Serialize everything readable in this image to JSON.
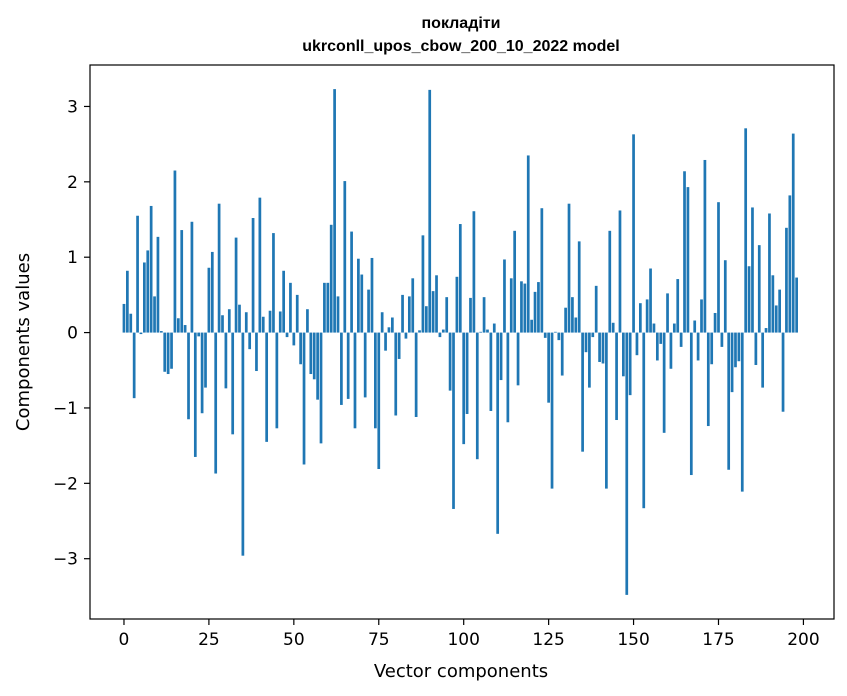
{
  "chart_data": {
    "type": "bar",
    "title_line1": "покладіти",
    "title_line2": "ukrconll_upos_cbow_200_10_2022 model",
    "xlabel": "Vector components",
    "ylabel": "Components values",
    "xlim": [
      -10,
      209
    ],
    "ylim": [
      -3.8,
      3.55
    ],
    "xticks": [
      0,
      25,
      50,
      75,
      100,
      125,
      150,
      175,
      200
    ],
    "yticks": [
      -3,
      -2,
      -1,
      0,
      1,
      2,
      3
    ],
    "xtick_labels": [
      "0",
      "25",
      "50",
      "75",
      "100",
      "125",
      "150",
      "175",
      "200"
    ],
    "ytick_labels": [
      "−3",
      "−2",
      "−1",
      "0",
      "1",
      "2",
      "3"
    ],
    "grid": false,
    "bar_color": "#1f77b4",
    "values": [
      0.38,
      0.82,
      0.25,
      -0.87,
      1.55,
      -0.02,
      0.93,
      1.09,
      1.68,
      0.48,
      1.27,
      0.02,
      -0.52,
      -0.55,
      -0.48,
      2.15,
      0.19,
      1.36,
      0.1,
      -1.15,
      1.47,
      -1.65,
      -0.05,
      -1.07,
      -0.73,
      0.86,
      1.07,
      -1.87,
      1.71,
      0.23,
      -0.74,
      0.31,
      -1.35,
      1.26,
      0.37,
      -2.96,
      0.27,
      -0.22,
      1.52,
      -0.51,
      1.79,
      0.21,
      -1.45,
      0.29,
      1.32,
      -1.27,
      0.28,
      0.82,
      -0.06,
      0.66,
      -0.17,
      0.5,
      -0.42,
      -1.75,
      0.31,
      -0.55,
      -0.62,
      -0.89,
      -1.47,
      0.66,
      0.66,
      1.43,
      3.23,
      0.48,
      -0.96,
      2.01,
      -0.88,
      1.34,
      -1.27,
      0.98,
      0.77,
      -0.86,
      0.57,
      0.99,
      -1.27,
      -1.81,
      0.27,
      -0.24,
      0.07,
      0.2,
      -1.1,
      -0.35,
      0.5,
      -0.08,
      0.48,
      0.72,
      -1.12,
      0.03,
      1.29,
      0.35,
      3.22,
      0.55,
      0.76,
      -0.06,
      0.04,
      0.47,
      -0.77,
      -2.34,
      0.74,
      1.44,
      -1.48,
      -1.08,
      0.46,
      1.61,
      -1.68,
      0.01,
      0.47,
      0.04,
      -1.04,
      0.12,
      -2.67,
      -0.63,
      0.97,
      -1.19,
      0.72,
      1.35,
      -0.7,
      0.68,
      0.65,
      2.35,
      0.17,
      0.54,
      0.67,
      1.65,
      -0.07,
      -0.93,
      -2.07,
      0.01,
      -0.1,
      -0.57,
      0.33,
      1.71,
      0.47,
      0.2,
      1.21,
      -1.58,
      -0.26,
      -0.73,
      -0.06,
      0.62,
      -0.39,
      -0.41,
      -2.07,
      1.35,
      0.13,
      -1.16,
      1.62,
      -0.58,
      -3.48,
      -0.83,
      2.63,
      -0.3,
      0.39,
      -2.33,
      0.44,
      0.85,
      0.12,
      -0.37,
      -0.15,
      -1.33,
      0.52,
      -0.48,
      0.12,
      0.71,
      -0.19,
      2.14,
      1.93,
      -1.89,
      0.16,
      -0.37,
      0.44,
      2.29,
      -1.24,
      -0.42,
      0.26,
      1.73,
      -0.19,
      0.96,
      -1.82,
      -0.79,
      -0.46,
      -0.38,
      -2.11,
      2.71,
      0.88,
      1.66,
      -0.43,
      1.16,
      -0.73,
      0.06,
      1.58,
      0.76,
      0.36,
      0.57,
      -1.05,
      1.39,
      1.82,
      2.64,
      0.73
    ]
  }
}
